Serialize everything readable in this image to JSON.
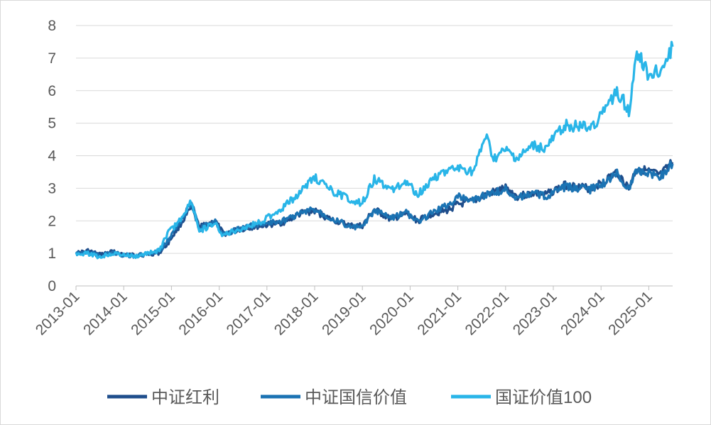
{
  "chart_data": {
    "type": "line",
    "title": "",
    "xlabel": "",
    "ylabel": "",
    "ylim": [
      0,
      8
    ],
    "y_ticks": [
      "0",
      "1",
      "2",
      "3",
      "4",
      "5",
      "6",
      "7",
      "8"
    ],
    "x_tick_labels": [
      "2013-01",
      "2014-01",
      "2015-01",
      "2016-01",
      "2017-01",
      "2018-01",
      "2019-01",
      "2020-01",
      "2021-01",
      "2022-01",
      "2023-01",
      "2024-01",
      "2025-01"
    ],
    "x_range": [
      "2013-01",
      "2025-07"
    ],
    "grid": "horizontal",
    "legend_position": "bottom",
    "series": [
      {
        "name": "中证红利",
        "color": "#1f4e8c",
        "points": [
          [
            "2013-01",
            1.0
          ],
          [
            "2013-04",
            1.08
          ],
          [
            "2013-07",
            0.96
          ],
          [
            "2013-10",
            1.05
          ],
          [
            "2014-01",
            0.97
          ],
          [
            "2014-04",
            0.94
          ],
          [
            "2014-07",
            0.97
          ],
          [
            "2014-10",
            1.02
          ],
          [
            "2014-12",
            1.3
          ],
          [
            "2015-03",
            1.85
          ],
          [
            "2015-06",
            2.4
          ],
          [
            "2015-08",
            1.8
          ],
          [
            "2015-10",
            1.9
          ],
          [
            "2015-12",
            2.0
          ],
          [
            "2016-02",
            1.6
          ],
          [
            "2016-05",
            1.7
          ],
          [
            "2016-09",
            1.8
          ],
          [
            "2016-12",
            1.85
          ],
          [
            "2017-05",
            1.95
          ],
          [
            "2017-10",
            2.25
          ],
          [
            "2018-01",
            2.3
          ],
          [
            "2018-05",
            2.05
          ],
          [
            "2018-10",
            1.85
          ],
          [
            "2019-01",
            1.85
          ],
          [
            "2019-04",
            2.35
          ],
          [
            "2019-08",
            2.05
          ],
          [
            "2019-12",
            2.2
          ],
          [
            "2020-03",
            2.0
          ],
          [
            "2020-07",
            2.25
          ],
          [
            "2020-10",
            2.3
          ],
          [
            "2021-01",
            2.5
          ],
          [
            "2021-05",
            2.6
          ],
          [
            "2021-09",
            2.85
          ],
          [
            "2022-01",
            3.0
          ],
          [
            "2022-04",
            2.75
          ],
          [
            "2022-08",
            2.85
          ],
          [
            "2022-11",
            2.8
          ],
          [
            "2023-04",
            3.1
          ],
          [
            "2023-10",
            3.0
          ],
          [
            "2024-01",
            3.15
          ],
          [
            "2024-05",
            3.5
          ],
          [
            "2024-08",
            3.0
          ],
          [
            "2024-10",
            3.65
          ],
          [
            "2025-01",
            3.5
          ],
          [
            "2025-04",
            3.4
          ],
          [
            "2025-07",
            3.8
          ]
        ]
      },
      {
        "name": "中证国信价值",
        "color": "#1b73b3",
        "points": [
          [
            "2013-01",
            1.0
          ],
          [
            "2013-04",
            1.05
          ],
          [
            "2013-07",
            0.92
          ],
          [
            "2013-10",
            1.02
          ],
          [
            "2014-01",
            0.95
          ],
          [
            "2014-04",
            0.92
          ],
          [
            "2014-07",
            0.98
          ],
          [
            "2014-10",
            1.05
          ],
          [
            "2014-12",
            1.4
          ],
          [
            "2015-03",
            1.95
          ],
          [
            "2015-06",
            2.55
          ],
          [
            "2015-08",
            1.75
          ],
          [
            "2015-10",
            1.9
          ],
          [
            "2015-12",
            1.95
          ],
          [
            "2016-02",
            1.6
          ],
          [
            "2016-05",
            1.7
          ],
          [
            "2016-09",
            1.85
          ],
          [
            "2016-12",
            1.9
          ],
          [
            "2017-05",
            2.0
          ],
          [
            "2017-10",
            2.25
          ],
          [
            "2018-01",
            2.35
          ],
          [
            "2018-05",
            2.1
          ],
          [
            "2018-10",
            1.8
          ],
          [
            "2019-01",
            1.8
          ],
          [
            "2019-04",
            2.3
          ],
          [
            "2019-08",
            2.1
          ],
          [
            "2019-12",
            2.25
          ],
          [
            "2020-03",
            1.95
          ],
          [
            "2020-07",
            2.3
          ],
          [
            "2020-10",
            2.45
          ],
          [
            "2021-01",
            2.75
          ],
          [
            "2021-05",
            2.65
          ],
          [
            "2021-09",
            2.85
          ],
          [
            "2022-01",
            2.95
          ],
          [
            "2022-04",
            2.7
          ],
          [
            "2022-08",
            2.85
          ],
          [
            "2022-11",
            2.75
          ],
          [
            "2023-04",
            3.05
          ],
          [
            "2023-10",
            2.95
          ],
          [
            "2024-01",
            3.1
          ],
          [
            "2024-05",
            3.45
          ],
          [
            "2024-08",
            2.95
          ],
          [
            "2024-10",
            3.55
          ],
          [
            "2025-01",
            3.5
          ],
          [
            "2025-04",
            3.35
          ],
          [
            "2025-07",
            3.75
          ]
        ]
      },
      {
        "name": "国证价值100",
        "color": "#29b5e8",
        "points": [
          [
            "2013-01",
            1.0
          ],
          [
            "2013-04",
            1.0
          ],
          [
            "2013-07",
            0.88
          ],
          [
            "2013-10",
            1.0
          ],
          [
            "2014-01",
            0.95
          ],
          [
            "2014-04",
            0.9
          ],
          [
            "2014-07",
            1.0
          ],
          [
            "2014-10",
            1.1
          ],
          [
            "2014-12",
            1.6
          ],
          [
            "2015-03",
            2.0
          ],
          [
            "2015-06",
            2.6
          ],
          [
            "2015-08",
            1.7
          ],
          [
            "2015-10",
            1.8
          ],
          [
            "2015-12",
            1.9
          ],
          [
            "2016-02",
            1.55
          ],
          [
            "2016-05",
            1.7
          ],
          [
            "2016-09",
            1.85
          ],
          [
            "2016-12",
            2.0
          ],
          [
            "2017-05",
            2.4
          ],
          [
            "2017-10",
            2.95
          ],
          [
            "2018-01",
            3.35
          ],
          [
            "2018-05",
            2.95
          ],
          [
            "2018-10",
            2.65
          ],
          [
            "2019-01",
            2.55
          ],
          [
            "2019-04",
            3.3
          ],
          [
            "2019-08",
            2.95
          ],
          [
            "2019-12",
            3.2
          ],
          [
            "2020-03",
            2.8
          ],
          [
            "2020-07",
            3.35
          ],
          [
            "2020-10",
            3.5
          ],
          [
            "2021-01",
            3.6
          ],
          [
            "2021-05",
            3.5
          ],
          [
            "2021-08",
            4.6
          ],
          [
            "2021-10",
            3.9
          ],
          [
            "2022-01",
            4.15
          ],
          [
            "2022-04",
            3.9
          ],
          [
            "2022-08",
            4.3
          ],
          [
            "2022-11",
            4.2
          ],
          [
            "2023-04",
            4.95
          ],
          [
            "2023-10",
            4.85
          ],
          [
            "2024-01",
            5.2
          ],
          [
            "2024-05",
            6.0
          ],
          [
            "2024-08",
            5.4
          ],
          [
            "2024-10",
            7.2
          ],
          [
            "2025-01",
            6.5
          ],
          [
            "2025-04",
            6.6
          ],
          [
            "2025-07",
            7.35
          ]
        ]
      }
    ]
  }
}
